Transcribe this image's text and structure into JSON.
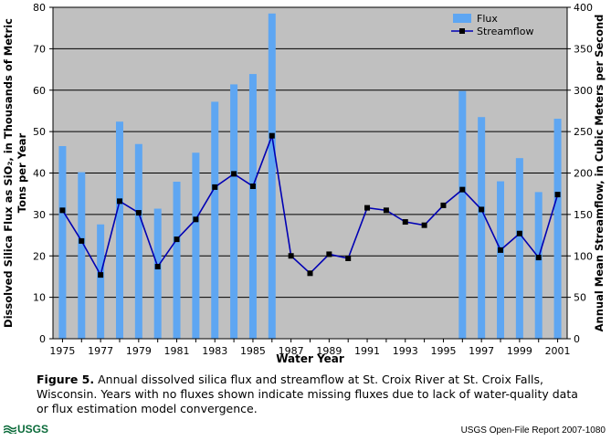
{
  "chart_data": {
    "type": "bar+line",
    "title": "",
    "xlabel": "Water Year",
    "ylabel_left": "Dissolved Silica Flux as SiO₂, in Thousands of Metric Tons per Year",
    "ylabel_left_lines": [
      "Dissolved Silica Flux as SiO₂, in Thousands of Metric",
      "Tons per Year"
    ],
    "ylabel_right": "Annual Mean Streamflow, in Cubic Meters per Second",
    "ylim_left": [
      0,
      80
    ],
    "ylim_right": [
      0,
      400
    ],
    "yticks_left": [
      "0",
      "10",
      "20",
      "30",
      "40",
      "50",
      "60",
      "70",
      "80"
    ],
    "yticks_right": [
      "0",
      "50",
      "100",
      "150",
      "200",
      "250",
      "300",
      "350",
      "400"
    ],
    "xtick_labels": [
      "1975",
      "1977",
      "1979",
      "1981",
      "1983",
      "1985",
      "1987",
      "1989",
      "1991",
      "1993",
      "1995",
      "1997",
      "1999",
      "2001"
    ],
    "years": [
      1975,
      1976,
      1977,
      1978,
      1979,
      1980,
      1981,
      1982,
      1983,
      1984,
      1985,
      1986,
      1987,
      1988,
      1989,
      1990,
      1991,
      1992,
      1993,
      1994,
      1995,
      1996,
      1997,
      1998,
      1999,
      2000,
      2001
    ],
    "grid": true,
    "legend_position": "top-right",
    "series": [
      {
        "name": "Flux",
        "type": "bar",
        "axis": "left",
        "color": "#5ea6f2",
        "values": [
          46.5,
          40.2,
          27.6,
          52.4,
          47.0,
          31.4,
          37.9,
          44.9,
          57.2,
          61.4,
          63.9,
          78.5,
          null,
          null,
          null,
          null,
          null,
          null,
          null,
          null,
          null,
          59.8,
          53.5,
          38.0,
          43.6,
          35.4,
          53.1
        ]
      },
      {
        "name": "Streamflow",
        "type": "line",
        "axis": "right",
        "color": "#0000b4",
        "values": [
          155,
          118,
          77,
          166,
          152,
          87,
          120,
          144,
          183,
          199,
          184,
          245,
          100,
          79,
          102,
          97,
          158,
          155,
          141,
          137,
          161,
          180,
          156,
          107,
          127,
          98,
          174
        ]
      }
    ]
  },
  "caption": {
    "label": "Figure 5.",
    "text": "Annual dissolved silica flux and streamflow at St. Croix River at St. Croix Falls, Wisconsin. Years with no fluxes shown indicate missing fluxes due to lack of water-quality data or flux estimation model convergence."
  },
  "footer": {
    "logo_text": "USGS",
    "report": "USGS Open-File Report 2007-1080"
  },
  "colors": {
    "plot_background": "#c0c0c0",
    "grid": "#000000",
    "bar": "#5ea6f2",
    "line": "#0000b4",
    "marker": "#000000",
    "logo": "#0b6b3a"
  }
}
